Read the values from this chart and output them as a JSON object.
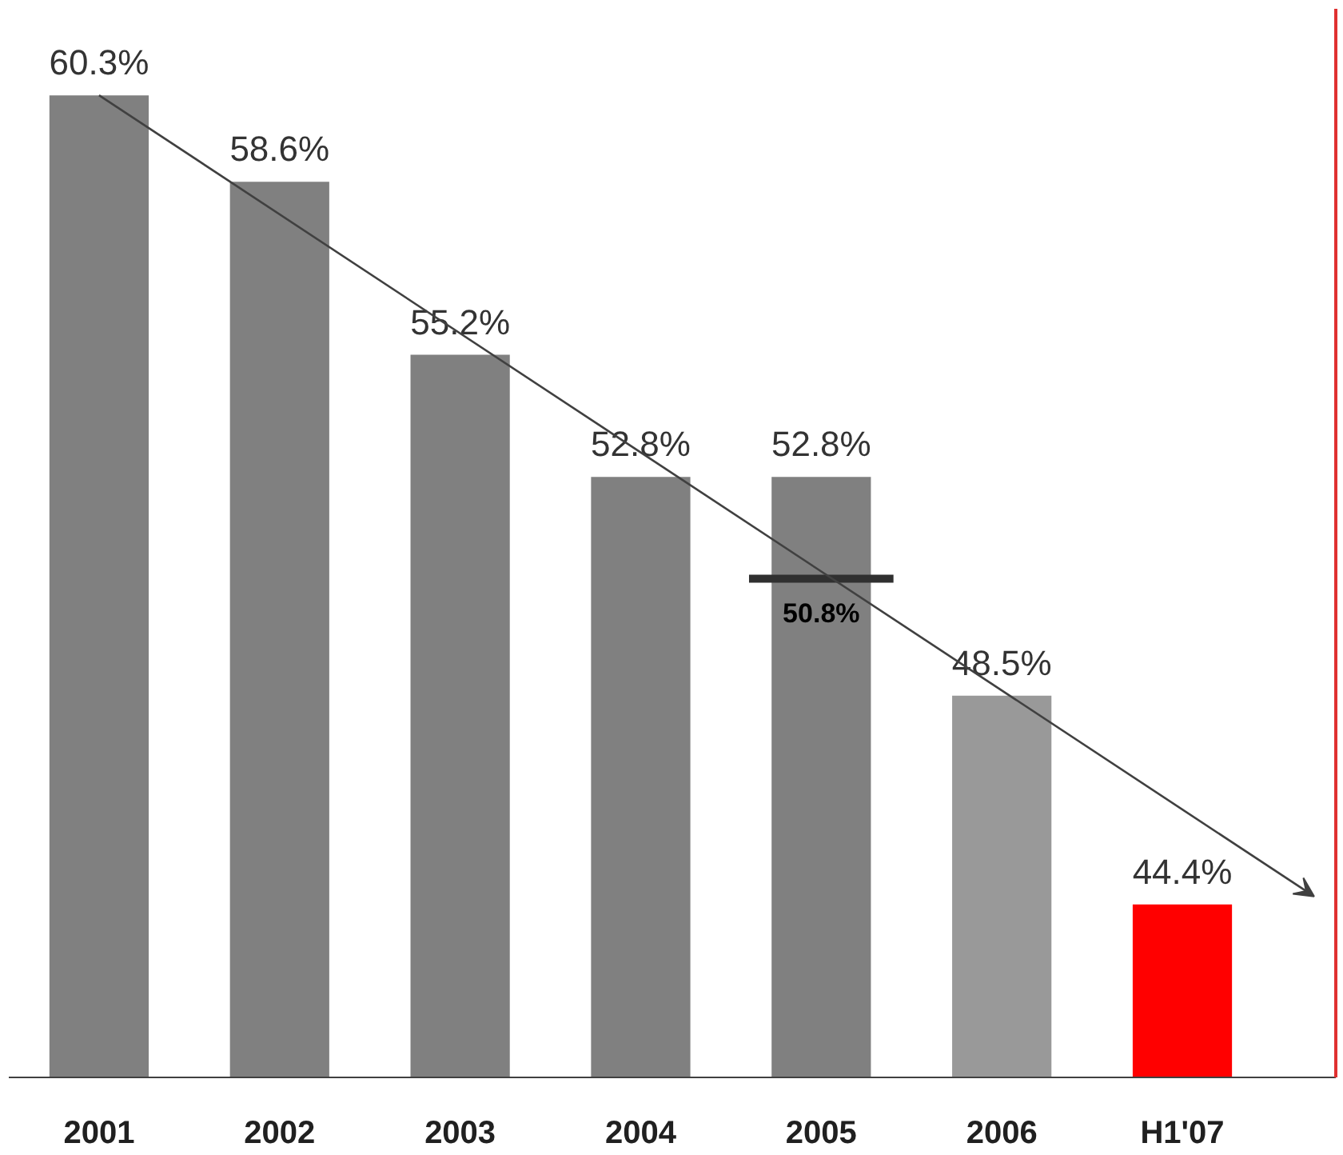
{
  "chart_data": {
    "type": "bar",
    "categories": [
      "2001",
      "2002",
      "2003",
      "2004",
      "2005",
      "2006",
      "H1'07"
    ],
    "series": [
      {
        "colors": [
          "#808080",
          "#808080",
          "#808080",
          "#808080",
          "#808080",
          "#999999",
          "#ff0000"
        ],
        "values": [
          60.3,
          58.6,
          55.2,
          52.8,
          52.8,
          48.5,
          44.4
        ],
        "value_labels": [
          "60.3%",
          "58.6%",
          "55.2%",
          "52.8%",
          "52.8%",
          "48.5%",
          "44.4%"
        ]
      }
    ],
    "ref_lines": [
      {
        "axis": "y",
        "value": 50.8,
        "label": "50.8%",
        "color": "#303030"
      }
    ],
    "ylim": [
      41,
      62
    ],
    "tick_labels": "x"
  }
}
